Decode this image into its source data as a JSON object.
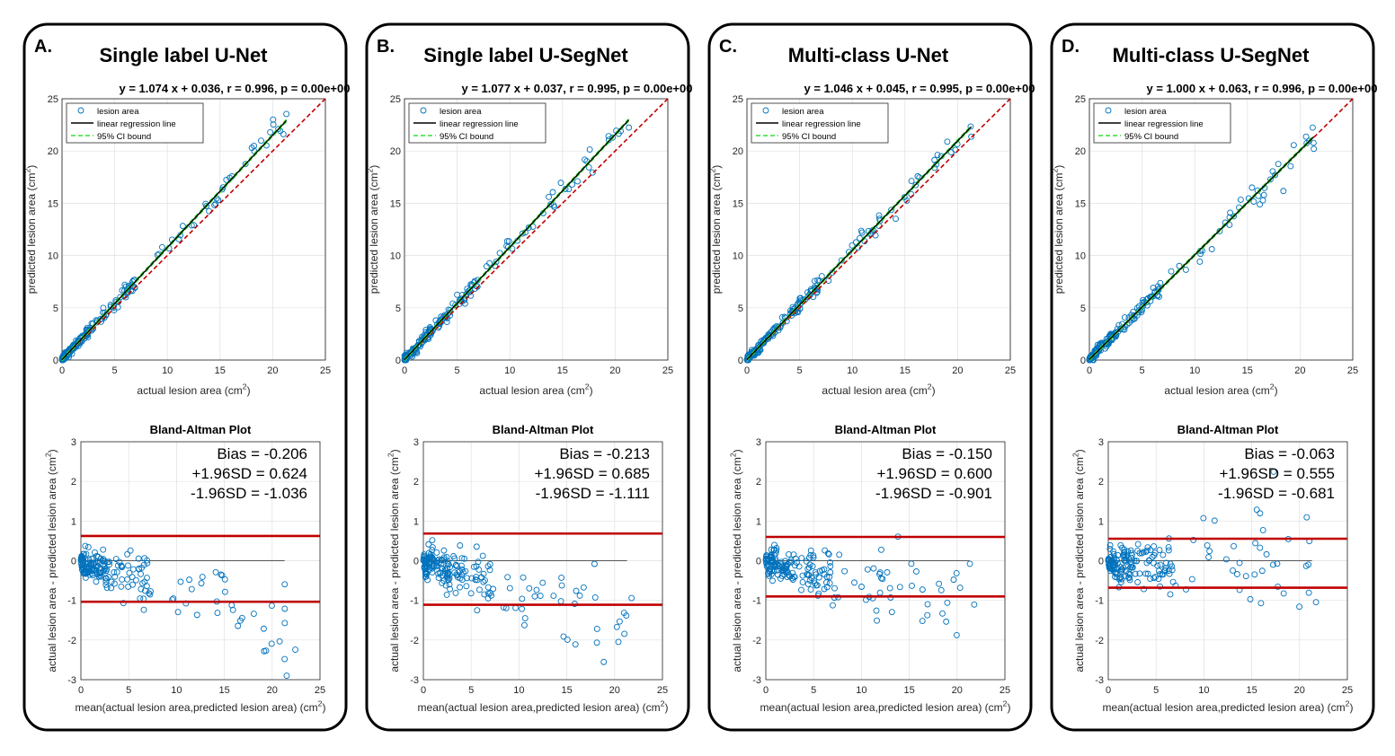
{
  "figure": {
    "scatter_axes": {
      "xlim": [
        0,
        25
      ],
      "ylim": [
        0,
        25
      ],
      "xticks": [
        0,
        5,
        10,
        15,
        20,
        25
      ],
      "yticks": [
        0,
        5,
        10,
        15,
        20,
        25
      ],
      "xlabel": "actual lesion area (cm",
      "ylabel": "predicted lesion area (cm",
      "sup": "2",
      "close": ")"
    },
    "legend": {
      "markers": "lesion area",
      "line": "linear regression line",
      "ci": "95% CI bound"
    },
    "ba_axes": {
      "title": "Bland-Altman Plot",
      "xlim": [
        0,
        25
      ],
      "ylim": [
        -3,
        3
      ],
      "xticks": [
        0,
        5,
        10,
        15,
        20,
        25
      ],
      "yticks": [
        -3,
        -2,
        -1,
        0,
        1,
        2,
        3
      ],
      "xlabel": "mean(actual lesion area,predicted lesion area) (cm",
      "ylabel": "actual lesion area - predicted lesion area (cm",
      "sup": "2",
      "close": ")"
    },
    "stat_labels": {
      "bias": "Bias =",
      "upper": "+1.96SD =",
      "lower": "-1.96SD ="
    },
    "colors": {
      "markers": "#0072BD",
      "regression": "#000000",
      "identity": "#C00000",
      "ci": "#33DD33",
      "limits": "#C00000",
      "grid": "#e0e0e0"
    }
  },
  "chart_data": [
    {
      "type": "scatter",
      "panel": "A.",
      "title": "Single label U-Net",
      "regression_text": "y = 1.074 x + 0.036, r = 0.996, p = 0.00e+00",
      "slope": 1.074,
      "intercept": 0.036,
      "r": 0.996,
      "bland_altman": {
        "bias_text": "-0.206",
        "upper_text": "0.624",
        "lower_text": "-1.036",
        "bias": -0.206,
        "upper": 0.624,
        "lower": -1.036
      }
    },
    {
      "type": "scatter",
      "panel": "B.",
      "title": "Single label U-SegNet",
      "regression_text": "y = 1.077 x + 0.037, r = 0.995, p = 0.00e+00",
      "slope": 1.077,
      "intercept": 0.037,
      "r": 0.995,
      "bland_altman": {
        "bias_text": "-0.213",
        "upper_text": "0.685",
        "lower_text": "-1.111",
        "bias": -0.213,
        "upper": 0.685,
        "lower": -1.111
      }
    },
    {
      "type": "scatter",
      "panel": "C.",
      "title": "Multi-class U-Net",
      "regression_text": "y = 1.046 x + 0.045, r = 0.995, p = 0.00e+00",
      "slope": 1.046,
      "intercept": 0.045,
      "r": 0.995,
      "bland_altman": {
        "bias_text": "-0.150",
        "upper_text": "0.600",
        "lower_text": "-0.901",
        "bias": -0.15,
        "upper": 0.6,
        "lower": -0.901
      }
    },
    {
      "type": "scatter",
      "panel": "D.",
      "title": "Multi-class U-SegNet",
      "regression_text": "y = 1.000 x + 0.063, r = 0.996, p = 0.00e+00",
      "slope": 1.0,
      "intercept": 0.063,
      "r": 0.996,
      "bland_altman": {
        "bias_text": "-0.063",
        "upper_text": " 0.555",
        "lower_text": "-0.681",
        "bias": -0.063,
        "upper": 0.555,
        "lower": -0.681
      }
    }
  ]
}
